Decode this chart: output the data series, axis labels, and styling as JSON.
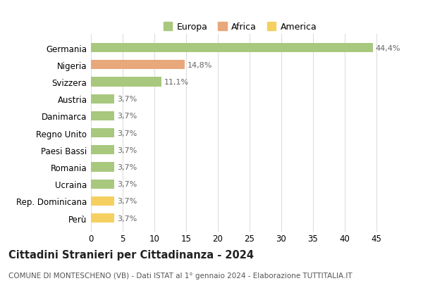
{
  "categories": [
    "Germania",
    "Nigeria",
    "Svizzera",
    "Austria",
    "Danimarca",
    "Regno Unito",
    "Paesi Bassi",
    "Romania",
    "Ucraina",
    "Rep. Dominicana",
    "Perù"
  ],
  "values": [
    44.4,
    14.8,
    11.1,
    3.7,
    3.7,
    3.7,
    3.7,
    3.7,
    3.7,
    3.7,
    3.7
  ],
  "labels": [
    "44,4%",
    "14,8%",
    "11,1%",
    "3,7%",
    "3,7%",
    "3,7%",
    "3,7%",
    "3,7%",
    "3,7%",
    "3,7%",
    "3,7%"
  ],
  "colors": [
    "#a8c87e",
    "#e8a87c",
    "#a8c87e",
    "#a8c87e",
    "#a8c87e",
    "#a8c87e",
    "#a8c87e",
    "#a8c87e",
    "#a8c87e",
    "#f5d060",
    "#f5d060"
  ],
  "legend_labels": [
    "Europa",
    "Africa",
    "America"
  ],
  "legend_colors": [
    "#a8c87e",
    "#e8a87c",
    "#f5d060"
  ],
  "xlim": [
    0,
    47
  ],
  "xticks": [
    0,
    5,
    10,
    15,
    20,
    25,
    30,
    35,
    40,
    45
  ],
  "title": "Cittadini Stranieri per Cittadinanza - 2024",
  "subtitle": "COMUNE DI MONTESCHENO (VB) - Dati ISTAT al 1° gennaio 2024 - Elaborazione TUTTITALIA.IT",
  "bg_color": "#ffffff",
  "grid_color": "#dddddd",
  "bar_height": 0.55,
  "title_fontsize": 10.5,
  "subtitle_fontsize": 7.5,
  "label_fontsize": 8,
  "tick_fontsize": 8.5,
  "legend_fontsize": 9
}
